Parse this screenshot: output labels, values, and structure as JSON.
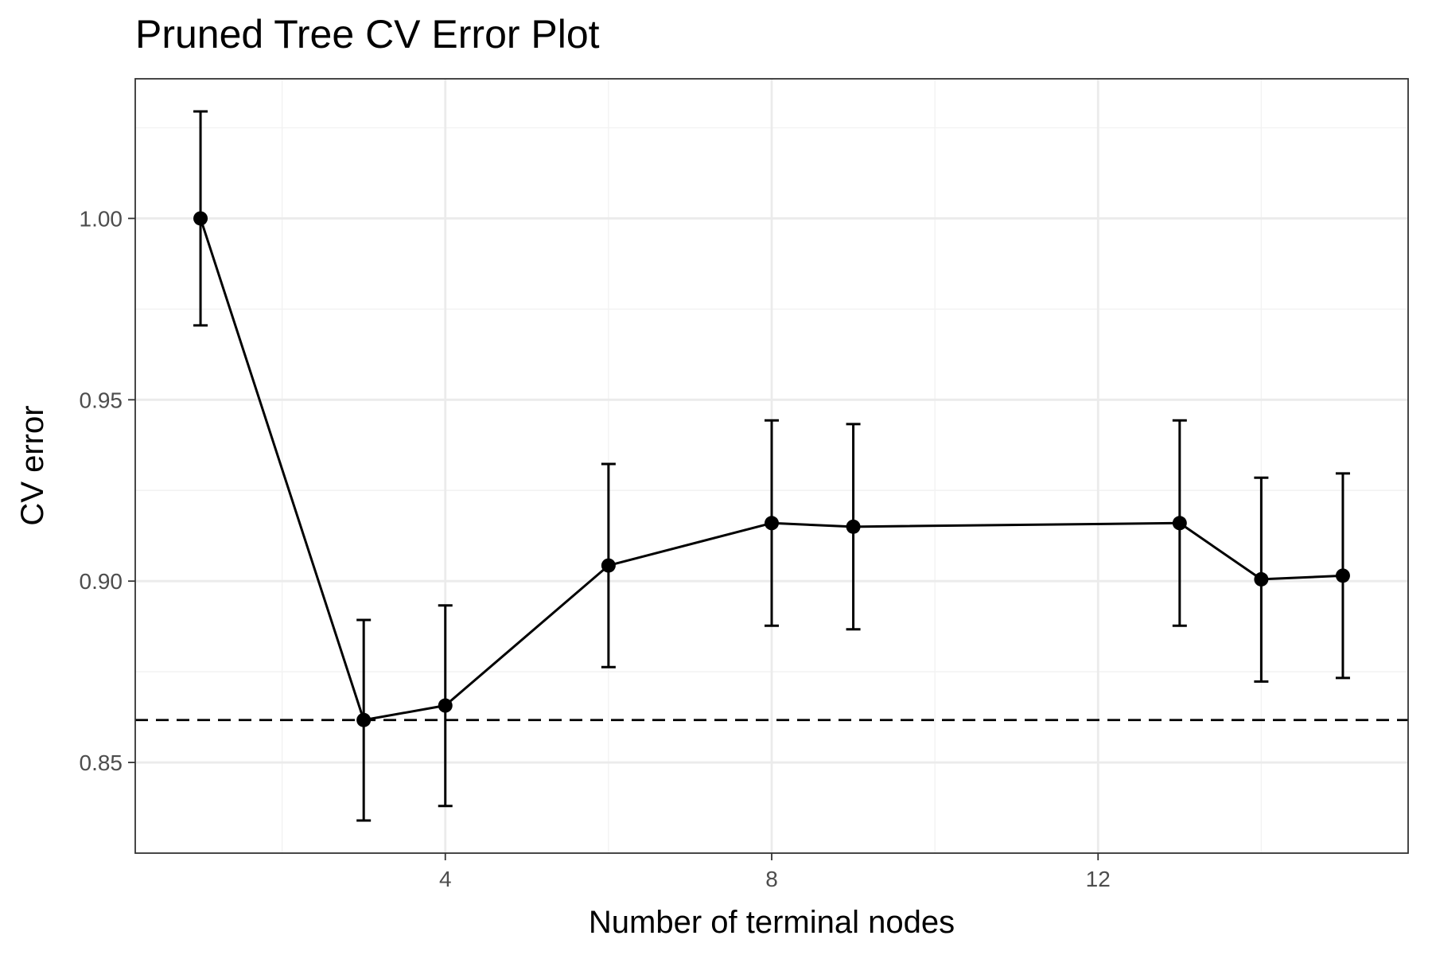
{
  "chart_data": {
    "type": "line",
    "title": "Pruned Tree CV Error Plot",
    "xlabel": "Number of terminal nodes",
    "ylabel": "CV error",
    "xlim": [
      0.2,
      15.8
    ],
    "ylim": [
      0.825,
      1.0385
    ],
    "x_ticks": [
      4,
      8,
      12
    ],
    "x_tick_labels": [
      "4",
      "8",
      "12"
    ],
    "y_ticks": [
      0.85,
      0.9,
      0.95,
      1.0
    ],
    "y_tick_labels": [
      "0.85",
      "0.90",
      "0.95",
      "1.00"
    ],
    "x_minor_ticks": [
      2,
      6,
      10,
      14
    ],
    "y_minor_ticks": [
      0.875,
      0.925,
      0.975,
      1.025
    ],
    "grid": true,
    "series": [
      {
        "x": [
          1,
          3,
          4,
          6,
          8,
          9,
          13,
          14,
          15
        ],
        "y": [
          1.0,
          0.8617,
          0.8657,
          0.9043,
          0.916,
          0.915,
          0.916,
          0.9005,
          0.9015
        ],
        "y_lower": [
          0.9705,
          0.834,
          0.838,
          0.8763,
          0.8877,
          0.8867,
          0.8877,
          0.8723,
          0.8733
        ],
        "y_upper": [
          1.0295,
          0.8893,
          0.8933,
          0.9323,
          0.9443,
          0.9433,
          0.9443,
          0.9285,
          0.9297
        ]
      }
    ],
    "reference_line": {
      "y": 0.8617,
      "style": "dashed"
    },
    "colors": {
      "line": "#000000",
      "grid_major": "#ebebeb",
      "grid_minor": "#f2f2f2",
      "panel_border": "#333333",
      "tick_label": "#4d4d4d"
    }
  }
}
